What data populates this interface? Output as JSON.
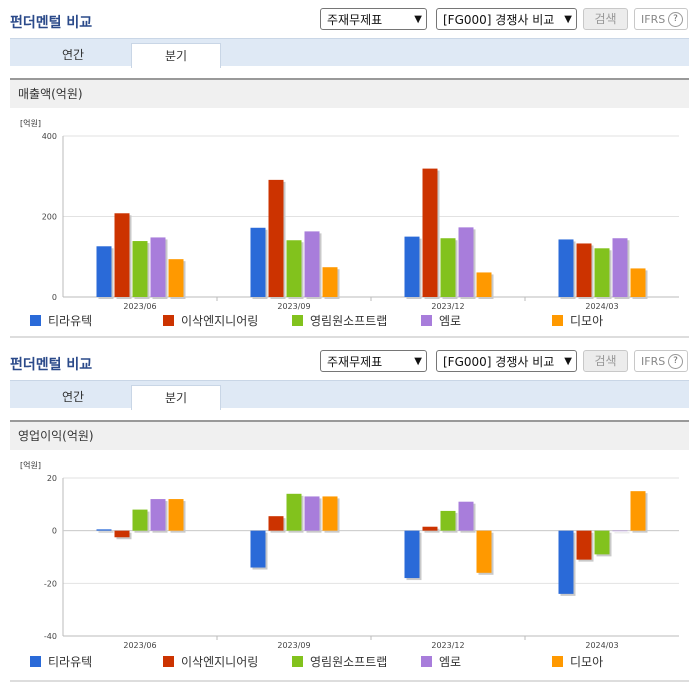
{
  "panels": [
    {
      "title": "펀더멘털 비교",
      "select_statement": "주재무제표",
      "select_compare": "[FG000] 경쟁사 비교",
      "search_button": "검색",
      "ifrs_label": "IFRS",
      "ifrs_help": "?",
      "tabs": [
        "연간",
        "분기"
      ],
      "active_tab": "분기",
      "section_title": "매출액(억원)",
      "unit": "[억원]"
    },
    {
      "title": "펀더멘털 비교",
      "select_statement": "주재무제표",
      "select_compare": "[FG000] 경쟁사 비교",
      "search_button": "검색",
      "ifrs_label": "IFRS",
      "ifrs_help": "?",
      "tabs": [
        "연간",
        "분기"
      ],
      "active_tab": "분기",
      "section_title": "영업이익(억원)",
      "unit": "[억원]"
    }
  ],
  "chart_data": [
    {
      "type": "bar",
      "title": "매출액(억원)",
      "ylabel": "[억원]",
      "categories": [
        "2023/06",
        "2023/09",
        "2023/12",
        "2024/03"
      ],
      "ylim": [
        0,
        400
      ],
      "yticks": [
        0,
        200,
        400
      ],
      "grid": true,
      "legend": "bottom",
      "series": [
        {
          "name": "티라유텍",
          "color": "#2a6ad8",
          "values": [
            126,
            172,
            150,
            143
          ]
        },
        {
          "name": "이삭엔지니어링",
          "color": "#cc3300",
          "values": [
            208,
            291,
            319,
            133
          ]
        },
        {
          "name": "영림원소프트랩",
          "color": "#82c21d",
          "values": [
            139,
            141,
            146,
            121
          ]
        },
        {
          "name": "엠로",
          "color": "#a87ddb",
          "values": [
            148,
            163,
            173,
            146
          ]
        },
        {
          "name": "디모아",
          "color": "#ff9900",
          "values": [
            94,
            74,
            61,
            71
          ]
        }
      ]
    },
    {
      "type": "bar",
      "title": "영업이익(억원)",
      "ylabel": "[억원]",
      "categories": [
        "2023/06",
        "2023/09",
        "2023/12",
        "2024/03"
      ],
      "ylim": [
        -40,
        20
      ],
      "yticks": [
        -40,
        -20,
        0,
        20
      ],
      "grid": true,
      "legend": "bottom",
      "series": [
        {
          "name": "티라유텍",
          "color": "#2a6ad8",
          "values": [
            0.5,
            -14,
            -18,
            -24
          ]
        },
        {
          "name": "이삭엔지니어링",
          "color": "#cc3300",
          "values": [
            -2.5,
            5.5,
            1.5,
            -11
          ]
        },
        {
          "name": "영림원소프트랩",
          "color": "#82c21d",
          "values": [
            8,
            14,
            7.5,
            -9
          ]
        },
        {
          "name": "엠로",
          "color": "#a87ddb",
          "values": [
            12,
            13,
            11,
            0
          ]
        },
        {
          "name": "디모아",
          "color": "#ff9900",
          "values": [
            12,
            13,
            -16,
            15
          ]
        }
      ]
    }
  ]
}
